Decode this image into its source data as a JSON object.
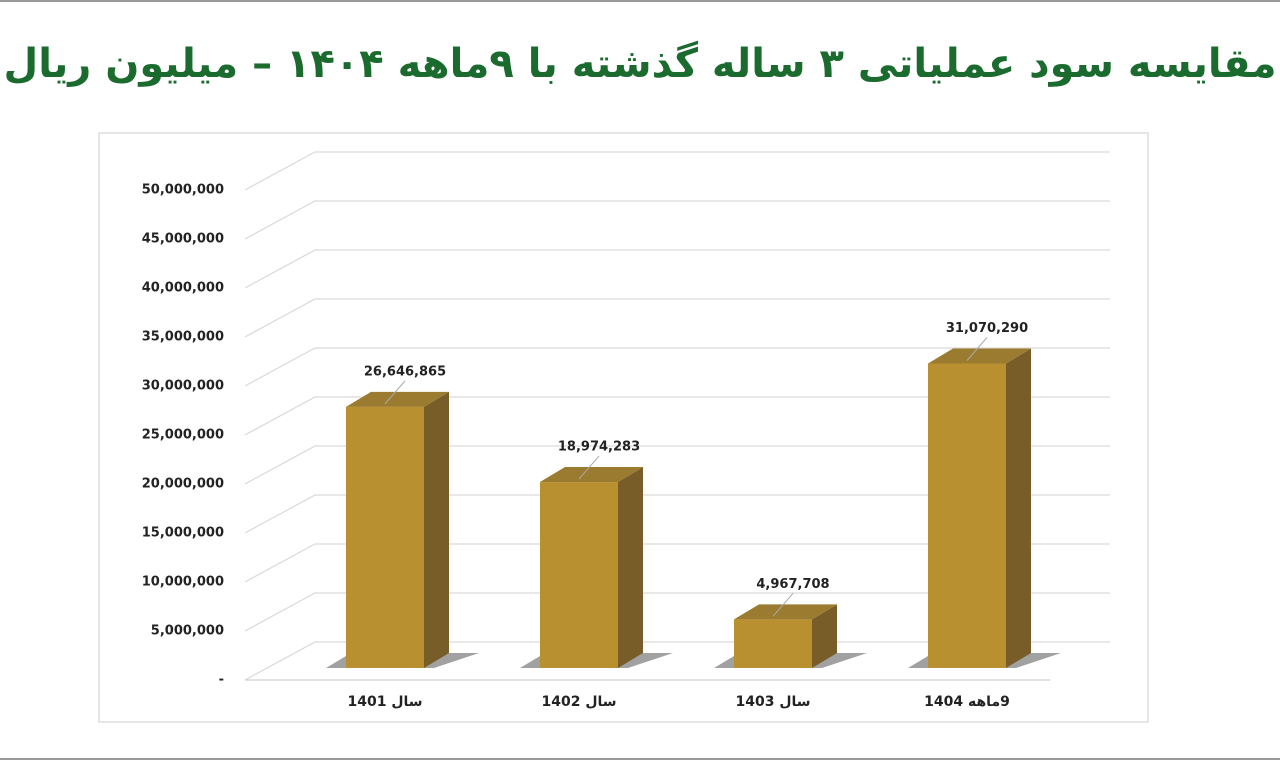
{
  "chart_data": {
    "type": "bar3d",
    "title": "مقایسه سود عملیاتی ۳ ساله گذشته با ۹ماهه ۱۴۰۴ – میلیون ریال",
    "categories": [
      "سال 1401",
      "سال 1402",
      "سال 1403",
      "9ماهه 1404"
    ],
    "values": [
      26646865,
      18974283,
      4967708,
      31070290
    ],
    "value_labels": [
      "26,646,865",
      "18,974,283",
      "4,967,708",
      "31,070,290"
    ],
    "color": "#b8902f",
    "ylim": [
      0,
      50000000
    ],
    "yticks": [
      {
        "value": 0,
        "label": "-"
      },
      {
        "value": 5000000,
        "label": "5,000,000"
      },
      {
        "value": 10000000,
        "label": "10,000,000"
      },
      {
        "value": 15000000,
        "label": "15,000,000"
      },
      {
        "value": 20000000,
        "label": "20,000,000"
      },
      {
        "value": 25000000,
        "label": "25,000,000"
      },
      {
        "value": 30000000,
        "label": "30,000,000"
      },
      {
        "value": 35000000,
        "label": "35,000,000"
      },
      {
        "value": 40000000,
        "label": "40,000,000"
      },
      {
        "value": 45000000,
        "label": "45,000,000"
      },
      {
        "value": 50000000,
        "label": "50,000,000"
      }
    ],
    "grid": true
  }
}
